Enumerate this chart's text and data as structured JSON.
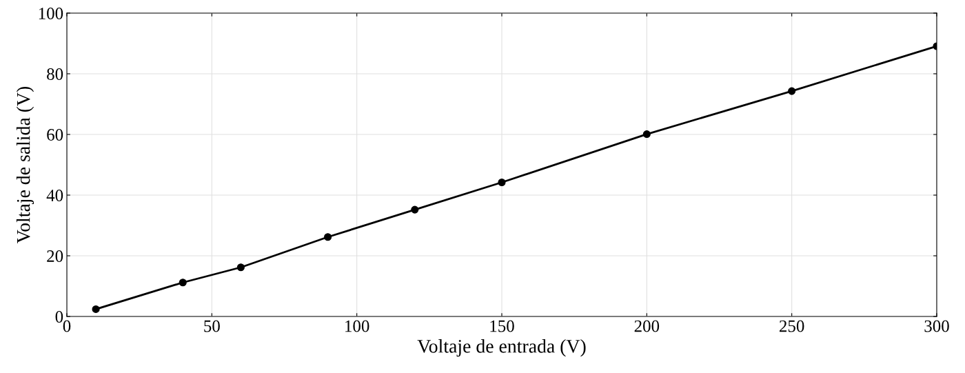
{
  "chart_data": {
    "type": "line",
    "xlabel": "Voltaje de entrada (V)",
    "ylabel": "Voltaje de salida (V)",
    "x": [
      10,
      40,
      60,
      90,
      120,
      150,
      200,
      250,
      300
    ],
    "series": [
      {
        "color": "#000000",
        "values": [
          2.4,
          11.2,
          16.2,
          26.2,
          35.2,
          44.2,
          60.1,
          74.3,
          89.1
        ]
      }
    ],
    "xlim": [
      0,
      300
    ],
    "xticks": [
      0,
      50,
      100,
      150,
      200,
      250,
      300
    ],
    "ylim": [
      0,
      100
    ],
    "yticks": [
      0,
      20,
      40,
      60,
      80,
      100
    ],
    "grid": true,
    "marker": "circle",
    "line_style": "solid"
  }
}
